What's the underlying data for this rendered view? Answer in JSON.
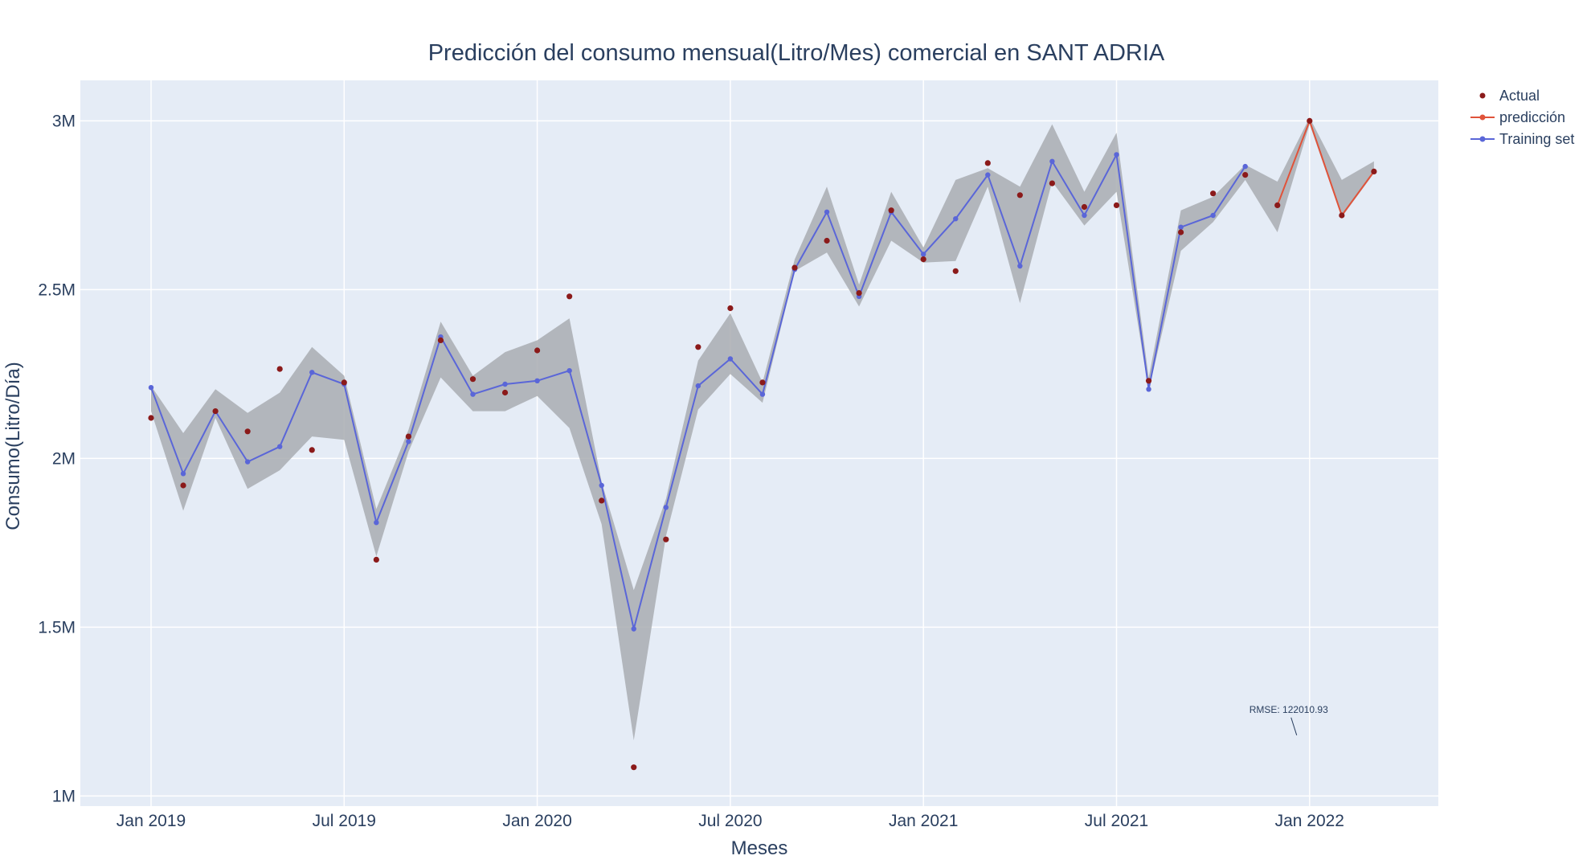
{
  "chart_data": {
    "type": "line",
    "title": "Predicción del consumo mensual(Litro/Mes) comercial en SANT ADRIA",
    "xlabel": "Meses",
    "ylabel": "Consumo(Litro/Día)",
    "ylim": [
      970000,
      3120000
    ],
    "yticks": [
      1000000,
      1500000,
      2000000,
      2500000,
      3000000
    ],
    "ytick_labels": [
      "1M",
      "1.5M",
      "2M",
      "2.5M",
      "3M"
    ],
    "xticks": [
      "2019-01",
      "2019-07",
      "2020-01",
      "2020-07",
      "2021-01",
      "2021-07",
      "2022-01"
    ],
    "xtick_labels": [
      "Jan 2019",
      "Jul 2019",
      "Jan 2020",
      "Jul 2020",
      "Jan 2021",
      "Jul 2021",
      "Jan 2022"
    ],
    "grid": true,
    "legend_position": "top-right",
    "annotation": "RMSE: 122010.93",
    "annotation_point": {
      "x": "2021-12",
      "y": 1180000
    },
    "colors": {
      "plot_bg": "#e5ecf6",
      "actual": "#8b1a1a",
      "prediction": "#e0533a",
      "training": "#5a66d8",
      "band": "#a9adb2",
      "text": "#2a3f5f"
    },
    "series": [
      {
        "name": "Actual",
        "mode": "markers",
        "x": [
          "2019-01",
          "2019-02",
          "2019-03",
          "2019-04",
          "2019-05",
          "2019-06",
          "2019-07",
          "2019-08",
          "2019-09",
          "2019-10",
          "2019-11",
          "2019-12",
          "2020-01",
          "2020-02",
          "2020-03",
          "2020-04",
          "2020-05",
          "2020-06",
          "2020-07",
          "2020-08",
          "2020-09",
          "2020-10",
          "2020-11",
          "2020-12",
          "2021-01",
          "2021-02",
          "2021-03",
          "2021-04",
          "2021-05",
          "2021-06",
          "2021-07",
          "2021-08",
          "2021-09",
          "2021-10",
          "2021-11",
          "2021-12",
          "2022-01",
          "2022-02",
          "2022-03"
        ],
        "y": [
          2120000,
          1920000,
          2140000,
          2080000,
          2265000,
          2025000,
          2225000,
          1700000,
          2065000,
          2350000,
          2235000,
          2195000,
          2320000,
          2480000,
          1875000,
          1085000,
          1760000,
          2330000,
          2445000,
          2225000,
          2565000,
          2645000,
          2490000,
          2735000,
          2590000,
          2555000,
          2875000,
          2780000,
          2815000,
          2745000,
          2750000,
          2230000,
          2670000,
          2785000,
          2840000,
          2750000,
          3000000,
          2720000,
          2850000
        ]
      },
      {
        "name": "predicción",
        "mode": "lines+markers",
        "x": [
          "2021-12",
          "2022-01",
          "2022-02",
          "2022-03"
        ],
        "y": [
          2750000,
          3000000,
          2720000,
          2850000
        ]
      },
      {
        "name": "Training set",
        "mode": "lines+markers",
        "x": [
          "2019-01",
          "2019-02",
          "2019-03",
          "2019-04",
          "2019-05",
          "2019-06",
          "2019-07",
          "2019-08",
          "2019-09",
          "2019-10",
          "2019-11",
          "2019-12",
          "2020-01",
          "2020-02",
          "2020-03",
          "2020-04",
          "2020-05",
          "2020-06",
          "2020-07",
          "2020-08",
          "2020-09",
          "2020-10",
          "2020-11",
          "2020-12",
          "2021-01",
          "2021-02",
          "2021-03",
          "2021-04",
          "2021-05",
          "2021-06",
          "2021-07",
          "2021-08",
          "2021-09",
          "2021-10",
          "2021-11"
        ],
        "y": [
          2210000,
          1955000,
          2140000,
          1990000,
          2035000,
          2255000,
          2220000,
          1810000,
          2050000,
          2360000,
          2190000,
          2220000,
          2230000,
          2260000,
          1920000,
          1495000,
          1855000,
          2215000,
          2295000,
          2190000,
          2560000,
          2730000,
          2480000,
          2730000,
          2605000,
          2710000,
          2840000,
          2570000,
          2880000,
          2720000,
          2900000,
          2205000,
          2685000,
          2720000,
          2865000
        ]
      }
    ],
    "confidence_band": {
      "x": [
        "2019-01",
        "2019-02",
        "2019-03",
        "2019-04",
        "2019-05",
        "2019-06",
        "2019-07",
        "2019-08",
        "2019-09",
        "2019-10",
        "2019-11",
        "2019-12",
        "2020-01",
        "2020-02",
        "2020-03",
        "2020-04",
        "2020-05",
        "2020-06",
        "2020-07",
        "2020-08",
        "2020-09",
        "2020-10",
        "2020-11",
        "2020-12",
        "2021-01",
        "2021-02",
        "2021-03",
        "2021-04",
        "2021-05",
        "2021-06",
        "2021-07",
        "2021-08",
        "2021-09",
        "2021-10",
        "2021-11",
        "2021-12",
        "2022-01",
        "2022-02",
        "2022-03"
      ],
      "upper": [
        2215000,
        2075000,
        2205000,
        2135000,
        2195000,
        2330000,
        2245000,
        1850000,
        2085000,
        2405000,
        2245000,
        2315000,
        2350000,
        2415000,
        1930000,
        1610000,
        1880000,
        2290000,
        2430000,
        2225000,
        2590000,
        2805000,
        2515000,
        2790000,
        2625000,
        2825000,
        2860000,
        2805000,
        2990000,
        2790000,
        2965000,
        2240000,
        2735000,
        2775000,
        2870000,
        2820000,
        3010000,
        2825000,
        2880000
      ],
      "lower": [
        2140000,
        1845000,
        2120000,
        1910000,
        1965000,
        2065000,
        2055000,
        1710000,
        2020000,
        2240000,
        2140000,
        2140000,
        2185000,
        2090000,
        1805000,
        1165000,
        1770000,
        2145000,
        2250000,
        2165000,
        2555000,
        2610000,
        2450000,
        2645000,
        2580000,
        2585000,
        2805000,
        2460000,
        2820000,
        2690000,
        2790000,
        2200000,
        2615000,
        2700000,
        2825000,
        2670000,
        2990000,
        2715000,
        2845000
      ]
    }
  }
}
